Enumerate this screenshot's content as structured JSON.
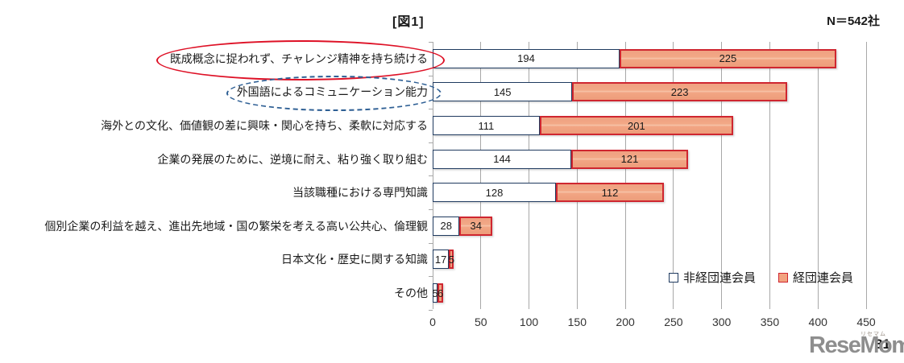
{
  "page": {
    "figure_title": "[図1]",
    "sample_size_label": "N＝542社",
    "page_number": "31"
  },
  "watermark": {
    "logo_text": "ReseMom.",
    "logo_ruby": "リセマム"
  },
  "chart_data": {
    "type": "bar",
    "orientation": "horizontal",
    "stacked": true,
    "title": "[図1]",
    "note": "N＝542社",
    "categories": [
      "既成概念に捉われず、チャレンジ精神を持ち続ける",
      "外国語によるコミュニケーション能力",
      "海外との文化、価値観の差に興味・関心を持ち、柔軟に対応する",
      "企業の発展のために、逆境に耐え、粘り強く取り組む",
      "当該職種における専門知識",
      "個別企業の利益を越え、進出先地域・国の繁栄を考える高い公共心、倫理観",
      "日本文化・歴史に関する知識",
      "その他"
    ],
    "series": [
      {
        "name": "非経団連会員",
        "values": [
          194,
          145,
          111,
          144,
          128,
          28,
          17,
          5
        ],
        "fill": "#ffffff",
        "border": "#1f3a5f"
      },
      {
        "name": "経団連会員",
        "values": [
          225,
          223,
          201,
          121,
          112,
          34,
          5,
          6
        ],
        "fill": "#f2a380",
        "border": "#cf2630"
      }
    ],
    "xlim": [
      0,
      450
    ],
    "xticks": [
      0,
      50,
      100,
      150,
      200,
      250,
      300,
      350,
      400,
      450
    ],
    "grid": true,
    "legend_position": "inside-bottom-right",
    "annotations": [
      {
        "category_index": 0,
        "shape": "ellipse",
        "line": "solid",
        "color": "#de1126"
      },
      {
        "category_index": 1,
        "shape": "ellipse",
        "line": "dashed",
        "color": "#2e5f94"
      }
    ]
  },
  "colors": {
    "gridline": "#a8a8a8",
    "axis_text": "#333333",
    "watermark_gray": "#8e8e8e"
  }
}
